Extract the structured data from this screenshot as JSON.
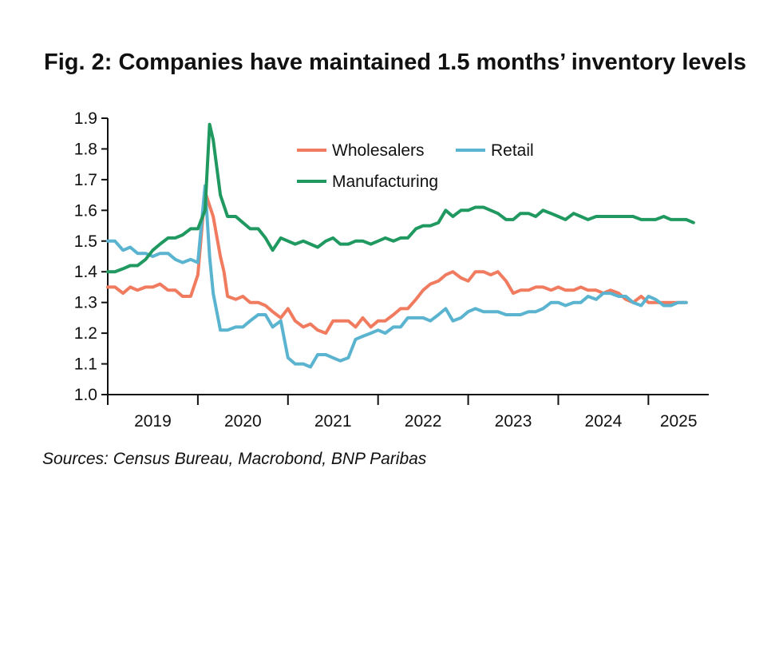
{
  "chart_data": {
    "type": "line",
    "title": "Fig. 2: Companies have maintained 1.5 months’ inventory levels",
    "source": "Sources: Census Bureau, Macrobond, BNP Paribas",
    "xlabel": "",
    "ylabel": "",
    "ylim": [
      1.0,
      1.9
    ],
    "yticks": [
      "1.0",
      "1.1",
      "1.2",
      "1.3",
      "1.4",
      "1.5",
      "1.6",
      "1.7",
      "1.8",
      "1.9"
    ],
    "xlim": [
      2019.0,
      2025.67
    ],
    "xticks": [
      2019,
      2020,
      2021,
      2022,
      2023,
      2024,
      2025
    ],
    "xtick_labels": [
      "2019",
      "2020",
      "2021",
      "2022",
      "2023",
      "2024",
      "2025"
    ],
    "grid": false,
    "legend_position": "top-center",
    "series": [
      {
        "name": "Wholesalers",
        "color": "#f07b5f",
        "x": [
          2019.0,
          2019.08,
          2019.17,
          2019.25,
          2019.33,
          2019.42,
          2019.5,
          2019.58,
          2019.67,
          2019.75,
          2019.83,
          2019.92,
          2020.0,
          2020.08,
          2020.17,
          2020.25,
          2020.29,
          2020.33,
          2020.42,
          2020.5,
          2020.58,
          2020.67,
          2020.75,
          2020.83,
          2020.92,
          2021.0,
          2021.08,
          2021.17,
          2021.25,
          2021.33,
          2021.42,
          2021.5,
          2021.58,
          2021.67,
          2021.75,
          2021.83,
          2021.92,
          2022.0,
          2022.08,
          2022.17,
          2022.25,
          2022.33,
          2022.42,
          2022.5,
          2022.58,
          2022.67,
          2022.75,
          2022.83,
          2022.92,
          2023.0,
          2023.08,
          2023.17,
          2023.25,
          2023.33,
          2023.42,
          2023.5,
          2023.58,
          2023.67,
          2023.75,
          2023.83,
          2023.92,
          2024.0,
          2024.08,
          2024.17,
          2024.25,
          2024.33,
          2024.42,
          2024.5,
          2024.58,
          2024.67,
          2024.75,
          2024.83,
          2024.92,
          2025.0,
          2025.08,
          2025.17,
          2025.25,
          2025.33,
          2025.42
        ],
        "values": [
          1.35,
          1.35,
          1.33,
          1.35,
          1.34,
          1.35,
          1.35,
          1.36,
          1.34,
          1.34,
          1.32,
          1.32,
          1.39,
          1.66,
          1.58,
          1.45,
          1.4,
          1.32,
          1.31,
          1.32,
          1.3,
          1.3,
          1.29,
          1.27,
          1.25,
          1.28,
          1.24,
          1.22,
          1.23,
          1.21,
          1.2,
          1.24,
          1.24,
          1.24,
          1.22,
          1.25,
          1.22,
          1.24,
          1.24,
          1.26,
          1.28,
          1.28,
          1.31,
          1.34,
          1.36,
          1.37,
          1.39,
          1.4,
          1.38,
          1.37,
          1.4,
          1.4,
          1.39,
          1.4,
          1.37,
          1.33,
          1.34,
          1.34,
          1.35,
          1.35,
          1.34,
          1.35,
          1.34,
          1.34,
          1.35,
          1.34,
          1.34,
          1.33,
          1.34,
          1.33,
          1.31,
          1.3,
          1.32,
          1.3,
          1.3,
          1.3,
          1.3,
          1.3,
          1.3
        ]
      },
      {
        "name": "Retail",
        "color": "#5ab4d0",
        "x": [
          2019.0,
          2019.08,
          2019.17,
          2019.25,
          2019.33,
          2019.42,
          2019.5,
          2019.58,
          2019.67,
          2019.75,
          2019.83,
          2019.92,
          2020.0,
          2020.08,
          2020.13,
          2020.17,
          2020.25,
          2020.33,
          2020.42,
          2020.5,
          2020.58,
          2020.67,
          2020.75,
          2020.83,
          2020.92,
          2021.0,
          2021.08,
          2021.17,
          2021.25,
          2021.33,
          2021.42,
          2021.5,
          2021.58,
          2021.67,
          2021.75,
          2021.83,
          2021.92,
          2022.0,
          2022.08,
          2022.17,
          2022.25,
          2022.33,
          2022.42,
          2022.5,
          2022.58,
          2022.67,
          2022.75,
          2022.83,
          2022.92,
          2023.0,
          2023.08,
          2023.17,
          2023.25,
          2023.33,
          2023.42,
          2023.5,
          2023.58,
          2023.67,
          2023.75,
          2023.83,
          2023.92,
          2024.0,
          2024.08,
          2024.17,
          2024.25,
          2024.33,
          2024.42,
          2024.5,
          2024.58,
          2024.67,
          2024.75,
          2024.83,
          2024.92,
          2025.0,
          2025.08,
          2025.17,
          2025.25,
          2025.33,
          2025.42
        ],
        "values": [
          1.5,
          1.5,
          1.47,
          1.48,
          1.46,
          1.46,
          1.45,
          1.46,
          1.46,
          1.44,
          1.43,
          1.44,
          1.43,
          1.68,
          1.45,
          1.33,
          1.21,
          1.21,
          1.22,
          1.22,
          1.24,
          1.26,
          1.26,
          1.22,
          1.24,
          1.12,
          1.1,
          1.1,
          1.09,
          1.13,
          1.13,
          1.12,
          1.11,
          1.12,
          1.18,
          1.19,
          1.2,
          1.21,
          1.2,
          1.22,
          1.22,
          1.25,
          1.25,
          1.25,
          1.24,
          1.26,
          1.28,
          1.24,
          1.25,
          1.27,
          1.28,
          1.27,
          1.27,
          1.27,
          1.26,
          1.26,
          1.26,
          1.27,
          1.27,
          1.28,
          1.3,
          1.3,
          1.29,
          1.3,
          1.3,
          1.32,
          1.31,
          1.33,
          1.33,
          1.32,
          1.32,
          1.3,
          1.29,
          1.32,
          1.31,
          1.29,
          1.29,
          1.3,
          1.3
        ]
      },
      {
        "name": "Manufacturing",
        "color": "#1f9960",
        "x": [
          2019.0,
          2019.08,
          2019.17,
          2019.25,
          2019.33,
          2019.42,
          2019.5,
          2019.58,
          2019.67,
          2019.75,
          2019.83,
          2019.92,
          2020.0,
          2020.08,
          2020.13,
          2020.17,
          2020.25,
          2020.33,
          2020.42,
          2020.5,
          2020.58,
          2020.67,
          2020.75,
          2020.83,
          2020.92,
          2021.0,
          2021.08,
          2021.17,
          2021.25,
          2021.33,
          2021.42,
          2021.5,
          2021.58,
          2021.67,
          2021.75,
          2021.83,
          2021.92,
          2022.0,
          2022.08,
          2022.17,
          2022.25,
          2022.33,
          2022.42,
          2022.5,
          2022.58,
          2022.67,
          2022.75,
          2022.83,
          2022.92,
          2023.0,
          2023.08,
          2023.17,
          2023.25,
          2023.33,
          2023.42,
          2023.5,
          2023.58,
          2023.67,
          2023.75,
          2023.83,
          2023.92,
          2024.0,
          2024.08,
          2024.17,
          2024.25,
          2024.33,
          2024.42,
          2024.5,
          2024.58,
          2024.67,
          2024.75,
          2024.83,
          2024.92,
          2025.0,
          2025.08,
          2025.17,
          2025.25,
          2025.33,
          2025.42,
          2025.5
        ],
        "values": [
          1.4,
          1.4,
          1.41,
          1.42,
          1.42,
          1.44,
          1.47,
          1.49,
          1.51,
          1.51,
          1.52,
          1.54,
          1.54,
          1.6,
          1.88,
          1.83,
          1.65,
          1.58,
          1.58,
          1.56,
          1.54,
          1.54,
          1.51,
          1.47,
          1.51,
          1.5,
          1.49,
          1.5,
          1.49,
          1.48,
          1.5,
          1.51,
          1.49,
          1.49,
          1.5,
          1.5,
          1.49,
          1.5,
          1.51,
          1.5,
          1.51,
          1.51,
          1.54,
          1.55,
          1.55,
          1.56,
          1.6,
          1.58,
          1.6,
          1.6,
          1.61,
          1.61,
          1.6,
          1.59,
          1.57,
          1.57,
          1.59,
          1.59,
          1.58,
          1.6,
          1.59,
          1.58,
          1.57,
          1.59,
          1.58,
          1.57,
          1.58,
          1.58,
          1.58,
          1.58,
          1.58,
          1.58,
          1.57,
          1.57,
          1.57,
          1.58,
          1.57,
          1.57,
          1.57,
          1.56
        ]
      }
    ]
  }
}
